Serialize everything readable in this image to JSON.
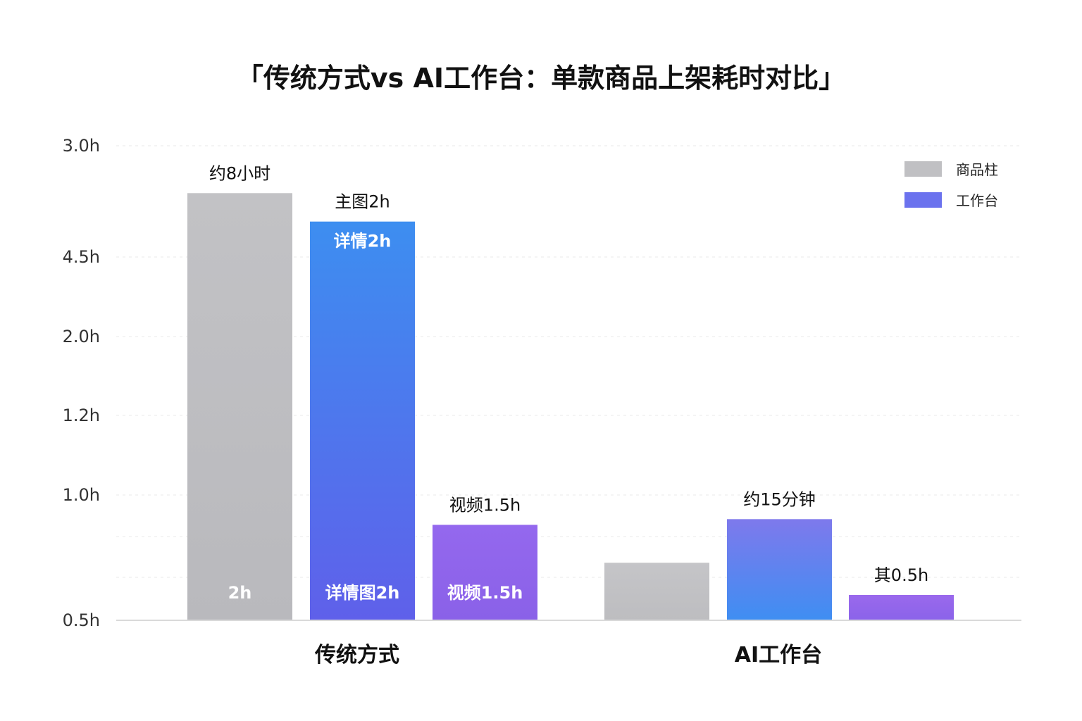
{
  "chart_data": {
    "type": "bar",
    "title": "「传统方式vs AI工作台：单款商品上架耗时对比」",
    "xlabel": "",
    "ylabel": "",
    "y_ticks": [
      "3.0h",
      "4.5h",
      "2.0h",
      "1.2h",
      "1.0h",
      "0.5h"
    ],
    "ylim": [
      0.5,
      3.0
    ],
    "grid": true,
    "legend_position": "top-right",
    "legend": [
      {
        "label": "商品柱",
        "color": "#c0c0c3"
      },
      {
        "label": "工作台",
        "color": "#6b72ee"
      }
    ],
    "categories": [
      "传统方式",
      "AI工作台"
    ],
    "bars": [
      {
        "group": "传统方式",
        "value": 2.75,
        "color_top": "#c2c2c5",
        "color_bottom": "#b9b9bd",
        "top_label": "约8小时",
        "inside_top_label": "",
        "inside_bottom_label": "2h"
      },
      {
        "group": "传统方式",
        "value": 2.6,
        "color_top": "#3d8ef0",
        "color_bottom": "#5f60ea",
        "top_label": "主图2h",
        "inside_top_label": "详情2h",
        "inside_bottom_label": "详情图2h"
      },
      {
        "group": "传统方式",
        "value": 1.0,
        "color_top": "#9468ee",
        "color_bottom": "#8a61e8",
        "top_label": "视频1.5h",
        "inside_top_label": "",
        "inside_bottom_label": "视频1.5h"
      },
      {
        "group": "AI工作台",
        "value": 0.8,
        "color_top": "#c5c5c8",
        "color_bottom": "#bdbdc0",
        "top_label": "",
        "inside_top_label": "",
        "inside_bottom_label": ""
      },
      {
        "group": "AI工作台",
        "value": 1.03,
        "color_top": "#7e79ec",
        "color_bottom": "#3f8ef2",
        "top_label": "约15分钟",
        "inside_top_label": "",
        "inside_bottom_label": ""
      },
      {
        "group": "AI工作台",
        "value": 0.63,
        "color_top": "#9a69ec",
        "color_bottom": "#8b63ea",
        "top_label": "其0.5h",
        "inside_top_label": "",
        "inside_bottom_label": ""
      }
    ]
  }
}
